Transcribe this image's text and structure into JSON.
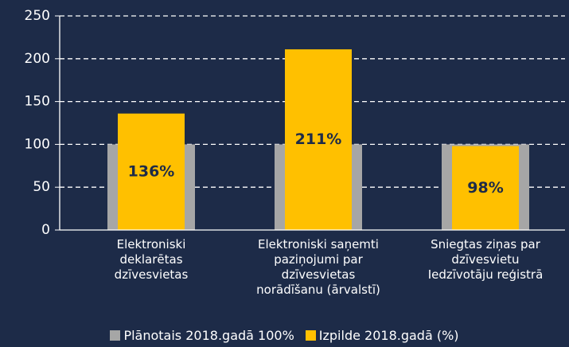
{
  "chart_data": {
    "type": "bar",
    "categories": [
      "Elektroniski\ndeklarētas\ndzīvesvietas",
      "Elektroniski saņemti\npaziņojumi par\ndzīvesvietas\nnorādīšanu (ārvalstī)",
      "Sniegtas ziņas par\ndzīvesvietu\nIedzīvotāju reģistrā"
    ],
    "series": [
      {
        "name": "Plānotais 2018.gadā 100%",
        "color": "#a6a6a6",
        "values": [
          100,
          100,
          100
        ]
      },
      {
        "name": "Izpilde 2018.gadā (%)",
        "color": "#ffc000",
        "values": [
          136,
          211,
          98
        ],
        "value_labels": [
          "136%",
          "211%",
          "98%"
        ]
      }
    ],
    "ylim": [
      0,
      250
    ],
    "yticks": [
      0,
      50,
      100,
      150,
      200,
      250
    ],
    "grid": true,
    "legend": "bottom"
  }
}
